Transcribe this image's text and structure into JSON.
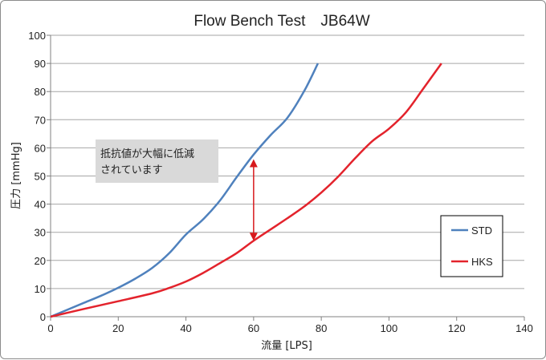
{
  "chart_data": {
    "type": "line",
    "title": "Flow Bench Test　JB64W",
    "xlabel": "流量 [LPS]",
    "ylabel": "圧力 [mmHg]",
    "xlim": [
      0,
      140
    ],
    "ylim": [
      0,
      100
    ],
    "xticks": [
      0,
      20,
      40,
      60,
      80,
      100,
      120,
      140
    ],
    "yticks": [
      0,
      10,
      20,
      30,
      40,
      50,
      60,
      70,
      80,
      90,
      100
    ],
    "grid": "horizontal",
    "legend_position": "right",
    "series": [
      {
        "name": "STD",
        "color": "#4f81bd",
        "x": [
          0,
          5,
          10,
          15,
          20,
          25,
          30,
          35,
          40,
          45,
          50,
          55,
          60,
          65,
          70,
          75,
          79
        ],
        "y": [
          0,
          2.5,
          5,
          7.5,
          10.3,
          13.5,
          17.3,
          22.5,
          29.2,
          34.5,
          41.2,
          49.6,
          57.6,
          64.5,
          70.7,
          80.3,
          90
        ]
      },
      {
        "name": "HKS",
        "color": "#e3232c",
        "x": [
          0,
          10,
          20,
          30,
          35,
          40,
          45,
          50,
          55,
          60,
          65,
          70,
          75,
          80,
          85,
          90,
          95,
          100,
          105,
          110,
          115.5
        ],
        "y": [
          0,
          2.8,
          5.5,
          8.3,
          10.2,
          12.5,
          15.5,
          19,
          22.6,
          27,
          31,
          35,
          39.2,
          44.1,
          49.8,
          56.3,
          62.3,
          66.8,
          72.6,
          80.8,
          90
        ]
      }
    ],
    "annotation": {
      "text_lines": [
        "抵抗値が大幅に低減",
        "されています"
      ],
      "arrow_x": 60,
      "arrow_y": [
        27,
        56
      ],
      "arrow_color": "#d7191c",
      "box_color": "#d9d9d9"
    }
  }
}
